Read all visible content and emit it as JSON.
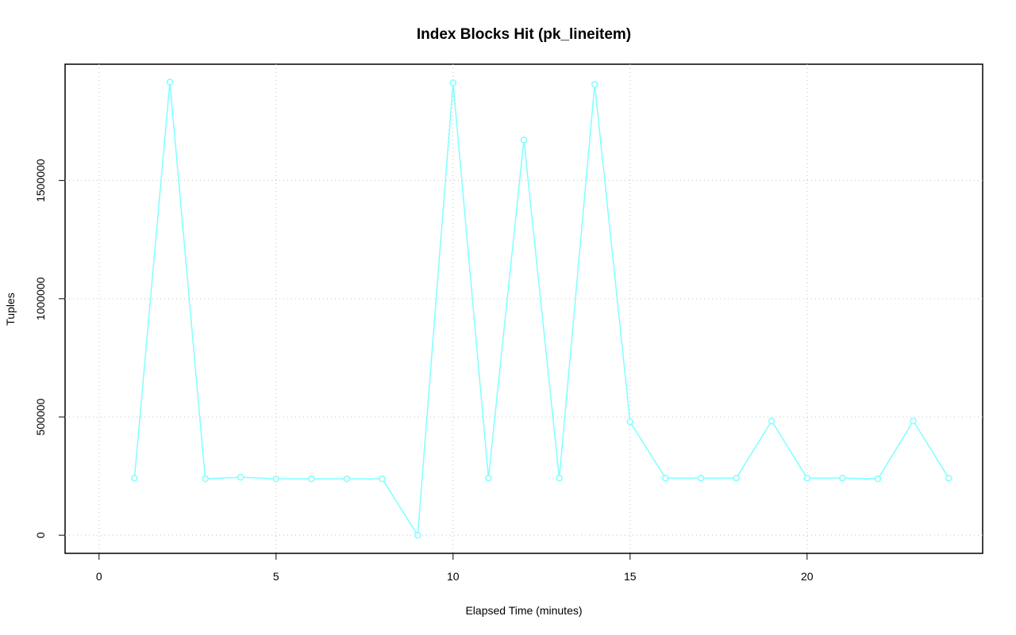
{
  "chart_data": {
    "type": "line",
    "title": "Index Blocks Hit (pk_lineitem)",
    "x_label": "Elapsed Time (minutes)",
    "y_label": "Tuples",
    "x": [
      1,
      2,
      3,
      4,
      5,
      6,
      7,
      8,
      9,
      10,
      11,
      12,
      13,
      14,
      15,
      16,
      17,
      18,
      19,
      20,
      21,
      22,
      23,
      24
    ],
    "values": [
      241600,
      1916100,
      238300,
      245000,
      238300,
      238300,
      238300,
      238300,
      0,
      1912700,
      241600,
      1671100,
      241600,
      1906000,
      479900,
      241600,
      241600,
      241600,
      483200,
      241600,
      241600,
      238300,
      483200,
      241600
    ],
    "color": "#80ffff",
    "xlim": [
      -0.96,
      24.96
    ],
    "xticks": [
      0,
      5,
      10,
      15,
      20
    ],
    "ylim": [
      -76600,
      1991600
    ],
    "yticks": [
      0,
      500000,
      1000000,
      1500000
    ],
    "grid": true
  }
}
